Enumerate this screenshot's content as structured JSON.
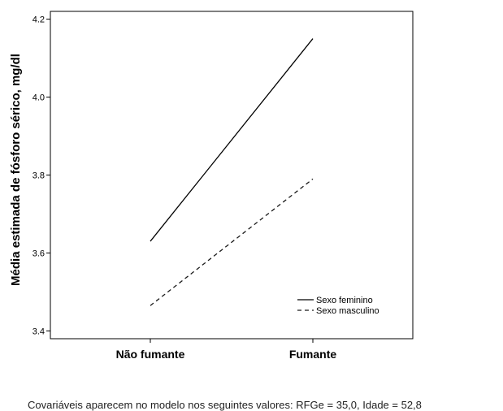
{
  "chart_data": {
    "type": "line",
    "categories": [
      "Não fumante",
      "Fumante"
    ],
    "series": [
      {
        "name": "Sexo feminino",
        "values": [
          3.63,
          4.15
        ],
        "style": "solid",
        "color": "#000000"
      },
      {
        "name": "Sexo masculino",
        "values": [
          3.465,
          3.79
        ],
        "style": "dashed",
        "color": "#1a1a1a"
      }
    ],
    "ylabel": "Média estimada de fósforo sérico, mg/dl",
    "xlabel": "",
    "ylim": [
      3.38,
      4.22
    ],
    "yticks": [
      3.4,
      3.6,
      3.8,
      4.0,
      4.2
    ],
    "ytick_labels": [
      "3.4",
      "3.6",
      "3.8",
      "4.0",
      "4.2"
    ],
    "grid": false,
    "legend_position": "bottom-right"
  },
  "footnote": "Covariáveis aparecem no modelo nos seguintes valores: RFGe = 35,0, Idade = 52,8"
}
